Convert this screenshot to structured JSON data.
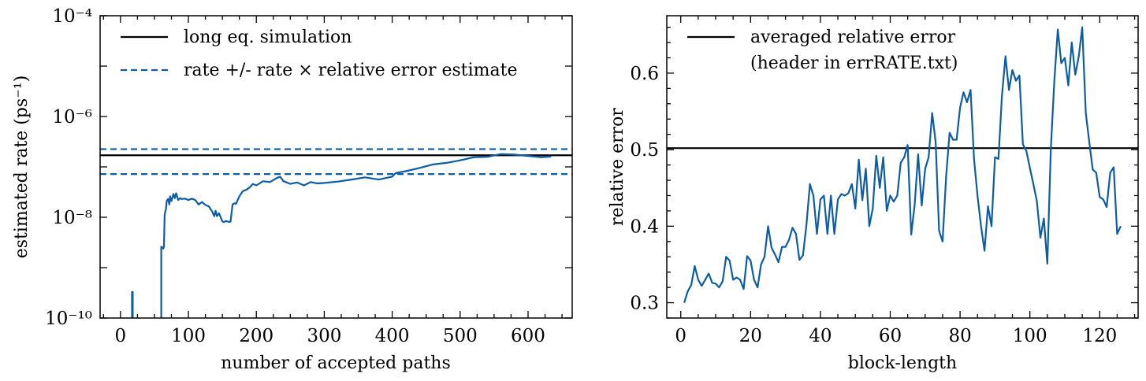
{
  "colors": {
    "series": "#0C5DA5",
    "reference": "#000000"
  },
  "chart_data": [
    {
      "type": "line",
      "title": "",
      "xlabel": "number of accepted paths",
      "ylabel": "estimated rate (ps⁻¹)",
      "xlim": [
        -30,
        665
      ],
      "ylim": [
        1e-10,
        0.0001
      ],
      "yscale": "log",
      "x_ticks": [
        0,
        100,
        200,
        300,
        400,
        500,
        600
      ],
      "y_ticks": [
        {
          "value": 1e-10,
          "label": "10⁻¹⁰"
        },
        {
          "value": 1e-08,
          "label": "10⁻⁸"
        },
        {
          "value": 1e-06,
          "label": "10⁻⁶"
        },
        {
          "value": 0.0001,
          "label": "10⁻⁴"
        }
      ],
      "legend_position": "top-left",
      "hlines": [
        {
          "name": "long eq. simulation",
          "y": 1.7e-07,
          "style": "solid",
          "color": "#000000"
        },
        {
          "name": "rate +/- rate × relative error estimate",
          "y": 2.25e-07,
          "style": "dashed",
          "color": "#0C5DA5"
        },
        {
          "name": "",
          "y": 7.2e-08,
          "style": "dashed",
          "color": "#0C5DA5"
        }
      ],
      "series": [
        {
          "color": "#0C5DA5",
          "segments": [
            {
              "x": [
                16,
                17,
                17,
                18,
                18
              ],
              "y": [
                1e-10,
                1e-10,
                3.3e-10,
                3.3e-10,
                1e-10
              ]
            },
            {
              "x": [
                60,
                60,
                62,
                63,
                64,
                65,
                66,
                67,
                68,
                70,
                72,
                73,
                75,
                78,
                80,
                82,
                85,
                88,
                90,
                95,
                100,
                105,
                110,
                115,
                120,
                125,
                130,
                135,
                138,
                140,
                142,
                145,
                150,
                152,
                155,
                160,
                162,
                165,
                168,
                170,
                175,
                180,
                185,
                190,
                195,
                200,
                210,
                220,
                230,
                235,
                240,
                250,
                260,
                270,
                280,
                290,
                300,
                320,
                340,
                360,
                380,
                400,
                405,
                410,
                420,
                440,
                460,
                480,
                500,
                520,
                540,
                560,
                580,
                600,
                620,
                634
              ],
              "y": [
                1e-10,
                2.6e-09,
                2.5e-09,
                2.4e-09,
                2.6e-09,
                1.1e-08,
                1.3e-08,
                1.45e-08,
                2.1e-08,
                2.3e-08,
                1.8e-08,
                2.6e-08,
                2.1e-08,
                2.9e-08,
                2.4e-08,
                3e-08,
                2.2e-08,
                2.4e-08,
                2.3e-08,
                2.35e-08,
                2.2e-08,
                2.35e-08,
                2.2e-08,
                1.8e-08,
                2e-08,
                1.75e-08,
                1.65e-08,
                1.3e-08,
                1.05e-08,
                1.35e-08,
                1.05e-08,
                1.2e-08,
                8.3e-09,
                8e-09,
                8.4e-09,
                8.1e-09,
                8.2e-09,
                1.8e-08,
                1.9e-08,
                1.85e-08,
                2.6e-08,
                3.3e-08,
                3.5e-08,
                3.9e-08,
                4.6e-08,
                4.3e-08,
                5.2e-08,
                5e-08,
                6e-08,
                6.4e-08,
                5.2e-08,
                4.6e-08,
                4.9e-08,
                4.3e-08,
                5e-08,
                4.7e-08,
                4.8e-08,
                5.1e-08,
                5.6e-08,
                6.2e-08,
                5.6e-08,
                6.4e-08,
                7.5e-08,
                7.8e-08,
                8.2e-08,
                9.5e-08,
                1.12e-07,
                1.2e-07,
                1.35e-07,
                1.55e-07,
                1.58e-07,
                1.8e-07,
                1.75e-07,
                1.65e-07,
                1.55e-07,
                1.6e-07
              ]
            }
          ]
        }
      ]
    },
    {
      "type": "line",
      "title": "",
      "xlabel": "block-length",
      "ylabel": "relative error",
      "xlim": [
        -4,
        131
      ],
      "ylim": [
        0.28,
        0.675
      ],
      "x_ticks": [
        0,
        20,
        40,
        60,
        80,
        100,
        120
      ],
      "y_ticks": [
        0.3,
        0.4,
        0.5,
        0.6
      ],
      "legend_position": "top-left",
      "hlines": [
        {
          "name": "averaged relative error\n(header in errRATE.txt)",
          "y": 0.502,
          "style": "solid",
          "color": "#000000"
        }
      ],
      "series": [
        {
          "color": "#0C5DA5",
          "x": [
            1,
            2,
            3,
            4,
            5,
            6,
            7,
            8,
            9,
            10,
            11,
            12,
            13,
            14,
            15,
            16,
            17,
            18,
            19,
            20,
            21,
            22,
            23,
            24,
            25,
            26,
            27,
            28,
            29,
            30,
            31,
            32,
            33,
            34,
            35,
            36,
            37,
            38,
            39,
            40,
            41,
            42,
            43,
            44,
            45,
            46,
            47,
            48,
            49,
            50,
            51,
            52,
            53,
            54,
            55,
            56,
            57,
            58,
            59,
            60,
            61,
            62,
            63,
            64,
            65,
            66,
            67,
            68,
            69,
            70,
            71,
            72,
            73,
            74,
            75,
            76,
            77,
            78,
            79,
            80,
            81,
            82,
            83,
            84,
            85,
            86,
            87,
            88,
            89,
            90,
            91,
            92,
            93,
            94,
            95,
            96,
            97,
            98,
            99,
            100,
            101,
            102,
            103,
            104,
            105,
            106,
            107,
            108,
            109,
            110,
            111,
            112,
            113,
            114,
            115,
            116,
            117,
            118,
            119,
            120,
            121,
            122,
            123,
            124,
            125,
            126
          ],
          "y": [
            0.3,
            0.315,
            0.323,
            0.348,
            0.33,
            0.322,
            0.33,
            0.338,
            0.326,
            0.325,
            0.32,
            0.328,
            0.36,
            0.355,
            0.33,
            0.333,
            0.33,
            0.318,
            0.361,
            0.355,
            0.33,
            0.32,
            0.35,
            0.36,
            0.4,
            0.372,
            0.363,
            0.353,
            0.373,
            0.373,
            0.382,
            0.398,
            0.39,
            0.356,
            0.362,
            0.402,
            0.455,
            0.44,
            0.39,
            0.435,
            0.44,
            0.39,
            0.44,
            0.39,
            0.435,
            0.442,
            0.44,
            0.443,
            0.455,
            0.423,
            0.487,
            0.434,
            0.475,
            0.4,
            0.423,
            0.492,
            0.45,
            0.49,
            0.42,
            0.44,
            0.432,
            0.44,
            0.483,
            0.49,
            0.506,
            0.389,
            0.428,
            0.494,
            0.427,
            0.475,
            0.49,
            0.548,
            0.51,
            0.394,
            0.38,
            0.465,
            0.522,
            0.513,
            0.513,
            0.555,
            0.575,
            0.562,
            0.578,
            0.488,
            0.44,
            0.4,
            0.368,
            0.426,
            0.4,
            0.49,
            0.488,
            0.57,
            0.622,
            0.578,
            0.604,
            0.59,
            0.597,
            0.507,
            0.498,
            0.476,
            0.455,
            0.433,
            0.385,
            0.41,
            0.351,
            0.502,
            0.59,
            0.657,
            0.613,
            0.62,
            0.584,
            0.64,
            0.598,
            0.622,
            0.66,
            0.548,
            0.51,
            0.474,
            0.47,
            0.438,
            0.435,
            0.425,
            0.47,
            0.477,
            0.39,
            0.4
          ]
        }
      ]
    }
  ]
}
